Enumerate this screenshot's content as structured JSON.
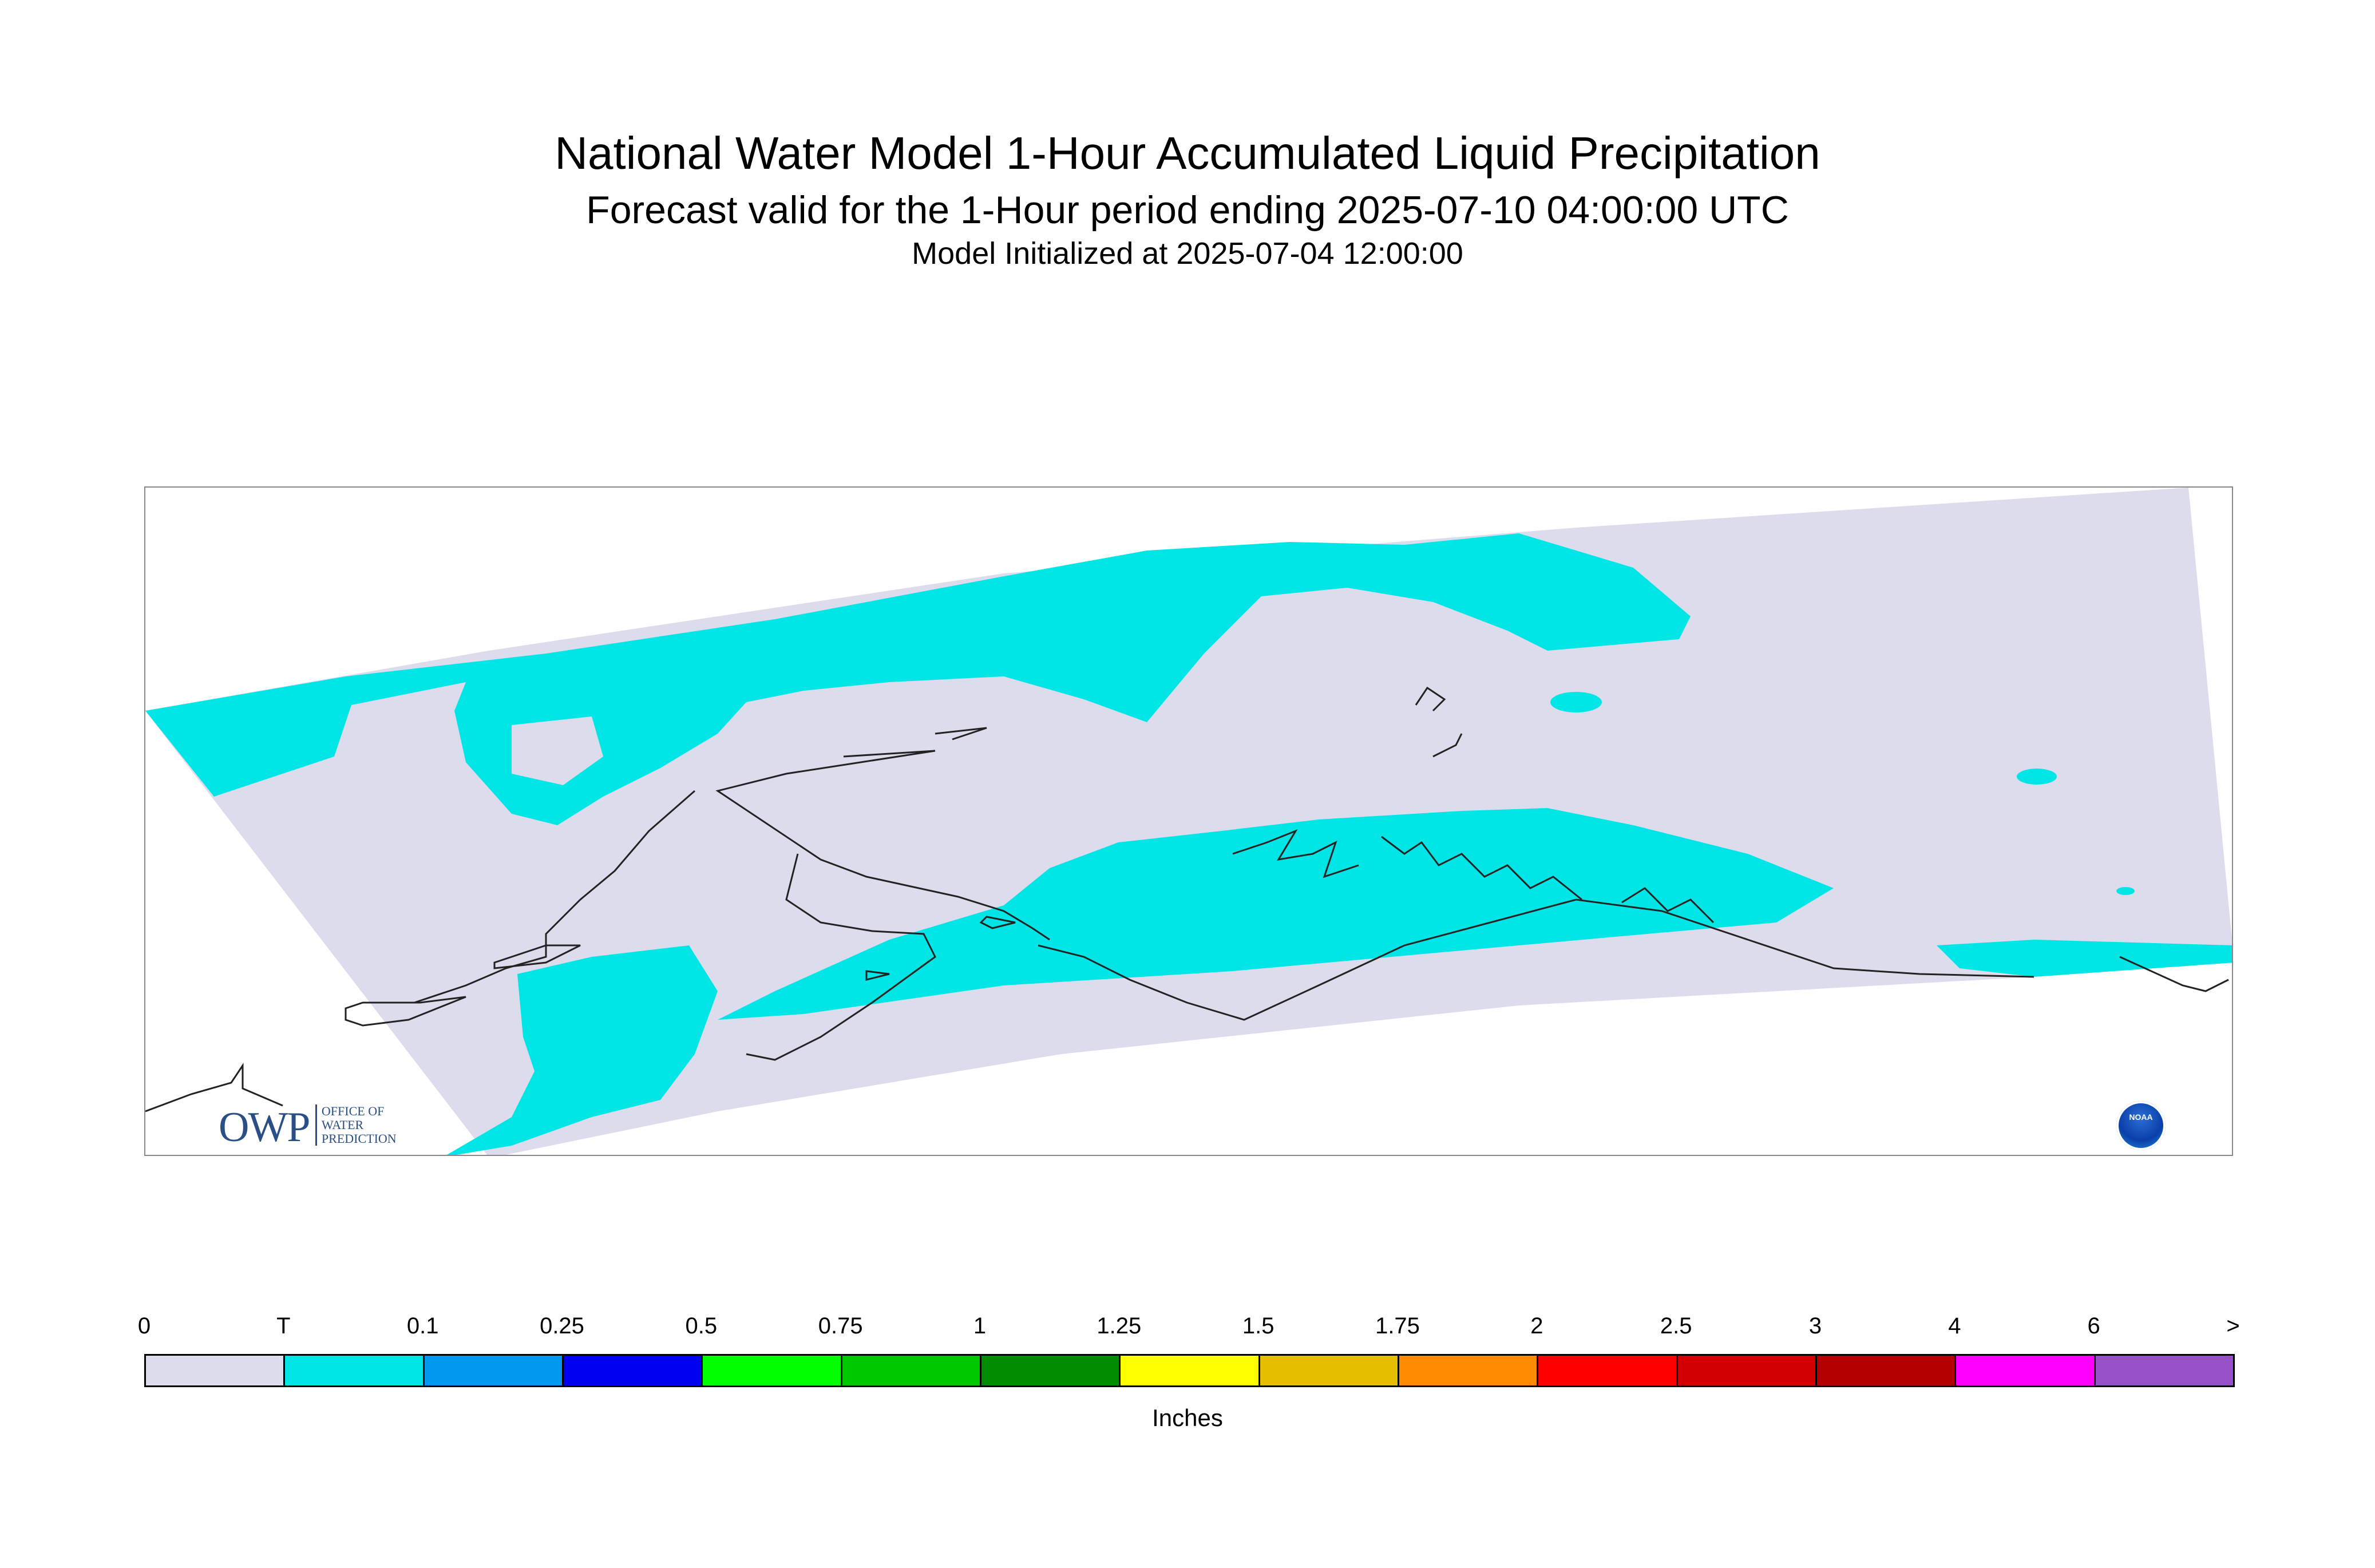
{
  "header": {
    "title": "National Water Model 1-Hour Accumulated Liquid Precipitation",
    "subtitle": "Forecast valid for the 1-Hour period ending 2025-07-10 04:00:00 UTC",
    "initialized": "Model Initialized at 2025-07-04 12:00:00"
  },
  "map": {
    "domain_color": "#dcdced",
    "trace_color": "#00e6e6",
    "coastline_color": "#222222",
    "logos": {
      "owp_mark": "OWP",
      "owp_sub": [
        "OFFICE OF",
        "WATER",
        "PREDICTION"
      ],
      "noaa": "NOAA"
    }
  },
  "legend": {
    "units": "Inches",
    "tick_labels": [
      "0",
      "T",
      "0.1",
      "0.25",
      "0.5",
      "0.75",
      "1",
      "1.25",
      "1.5",
      "1.75",
      "2",
      "2.5",
      "3",
      "4",
      "6",
      ">"
    ],
    "bins": [
      {
        "from": "0",
        "to": "T",
        "color": "#dcdced"
      },
      {
        "from": "T",
        "to": "0.1",
        "color": "#00e6e6"
      },
      {
        "from": "0.1",
        "to": "0.25",
        "color": "#0099f0"
      },
      {
        "from": "0.25",
        "to": "0.5",
        "color": "#0000f0"
      },
      {
        "from": "0.5",
        "to": "0.75",
        "color": "#00ff00"
      },
      {
        "from": "0.75",
        "to": "1",
        "color": "#00c800"
      },
      {
        "from": "1",
        "to": "1.25",
        "color": "#008c00"
      },
      {
        "from": "1.25",
        "to": "1.5",
        "color": "#ffff00"
      },
      {
        "from": "1.5",
        "to": "1.75",
        "color": "#e6be00"
      },
      {
        "from": "1.75",
        "to": "2",
        "color": "#ff8c00"
      },
      {
        "from": "2",
        "to": "2.5",
        "color": "#ff0000"
      },
      {
        "from": "2.5",
        "to": "3",
        "color": "#d20000"
      },
      {
        "from": "3",
        "to": "4",
        "color": "#b40000"
      },
      {
        "from": "4",
        "to": "6",
        "color": "#ff00ff"
      },
      {
        "from": "6",
        "to": ">",
        "color": "#9650c8"
      }
    ]
  }
}
